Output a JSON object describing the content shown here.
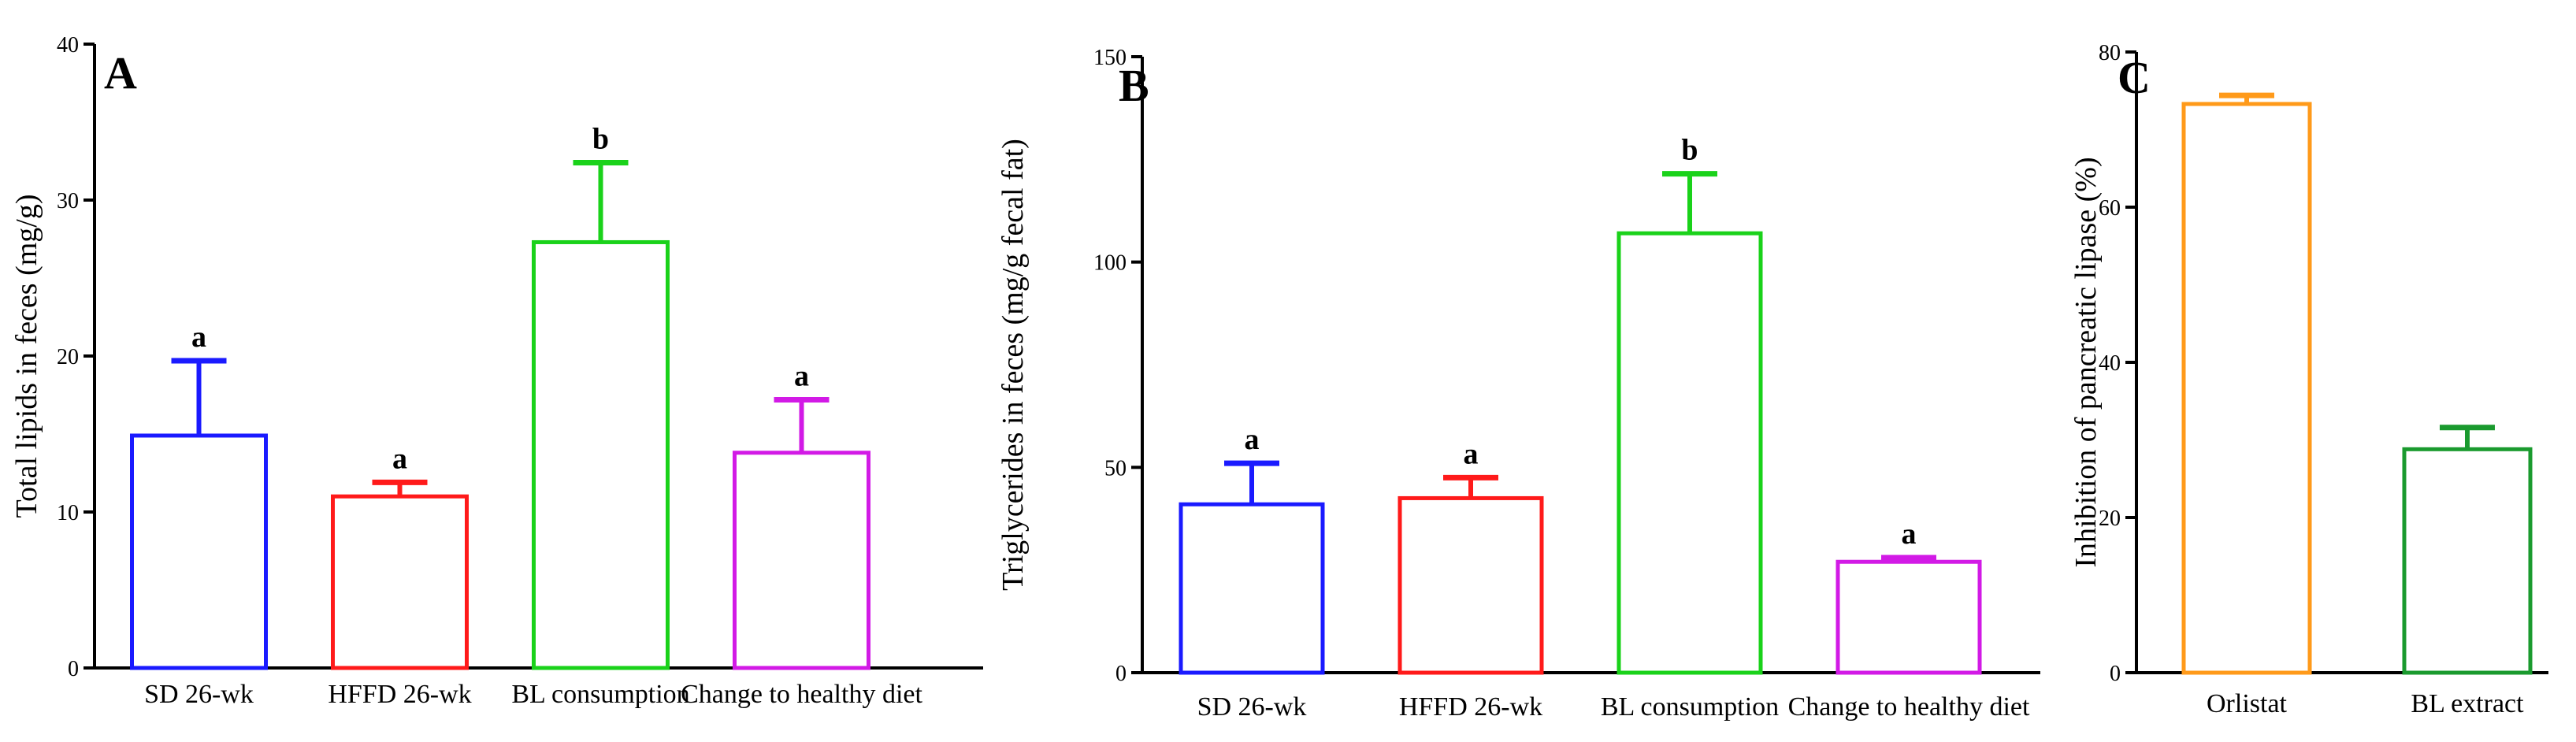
{
  "chart_data": [
    {
      "type": "bar",
      "panel": "A",
      "ylabel": "Total lipids in feces (mg/g)",
      "ylim": [
        0,
        40
      ],
      "yticks": [
        0,
        10,
        20,
        30,
        40
      ],
      "categories": [
        "SD 26-wk",
        "HFFD 26-wk",
        "BL consumption",
        "Change to healthy diet"
      ],
      "values": [
        14.9,
        11.0,
        27.3,
        13.8
      ],
      "errors": [
        4.8,
        0.9,
        5.1,
        3.4
      ],
      "significance": [
        "a",
        "a",
        "b",
        "a"
      ],
      "colors": [
        "#1a1aff",
        "#ff1a1a",
        "#1ad21a",
        "#d21ae6"
      ]
    },
    {
      "type": "bar",
      "panel": "B",
      "ylabel": "Triglycerides in feces (mg/g fecal fat)",
      "ylim": [
        0,
        150
      ],
      "yticks": [
        0,
        50,
        100,
        150
      ],
      "categories": [
        "SD 26-wk",
        "HFFD 26-wk",
        "BL consumption",
        "Change to healthy diet"
      ],
      "values": [
        41,
        42.5,
        107,
        27
      ],
      "errors": [
        10,
        5,
        14.5,
        1
      ],
      "significance": [
        "a",
        "a",
        "b",
        "a"
      ],
      "colors": [
        "#1a1aff",
        "#ff1a1a",
        "#1ad21a",
        "#d21ae6"
      ]
    },
    {
      "type": "bar",
      "panel": "C",
      "ylabel": "Inhibition of pancreatic lipase (%)",
      "ylim": [
        0,
        80
      ],
      "yticks": [
        0,
        20,
        40,
        60,
        80
      ],
      "categories": [
        "Orlistat",
        "BL extract"
      ],
      "values": [
        73.3,
        28.8
      ],
      "errors": [
        1.1,
        2.8
      ],
      "significance": [
        "",
        ""
      ],
      "colors": [
        "#ff9a1a",
        "#1a9a2e"
      ]
    }
  ]
}
